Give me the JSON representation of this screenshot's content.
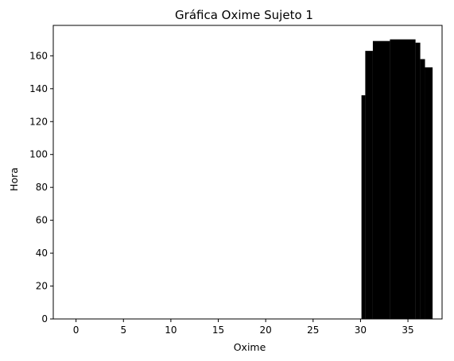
{
  "chart_data": {
    "type": "bar",
    "title": "Gráfica Oxime Sujeto 1",
    "xlabel": "Oxime",
    "ylabel": "Hora",
    "xlim": [
      -2.4,
      38.6
    ],
    "ylim": [
      0,
      178.5
    ],
    "x_ticks": [
      0,
      5,
      10,
      15,
      20,
      25,
      30,
      35
    ],
    "y_ticks": [
      0,
      20,
      40,
      60,
      80,
      100,
      120,
      140,
      160
    ],
    "grid": false,
    "legend": "none",
    "colors": {
      "bars": "#000000",
      "axes": "#000000",
      "background": "#ffffff"
    },
    "series": [
      {
        "name": "",
        "bars": [
          {
            "x_start": 30.1,
            "x_end": 30.5,
            "value": 136
          },
          {
            "x_start": 30.5,
            "x_end": 31.3,
            "value": 163
          },
          {
            "x_start": 31.3,
            "x_end": 33.1,
            "value": 169
          },
          {
            "x_start": 33.1,
            "x_end": 35.8,
            "value": 170
          },
          {
            "x_start": 35.8,
            "x_end": 36.3,
            "value": 168
          },
          {
            "x_start": 36.3,
            "x_end": 36.8,
            "value": 158
          },
          {
            "x_start": 36.8,
            "x_end": 37.6,
            "value": 153
          }
        ]
      }
    ]
  }
}
